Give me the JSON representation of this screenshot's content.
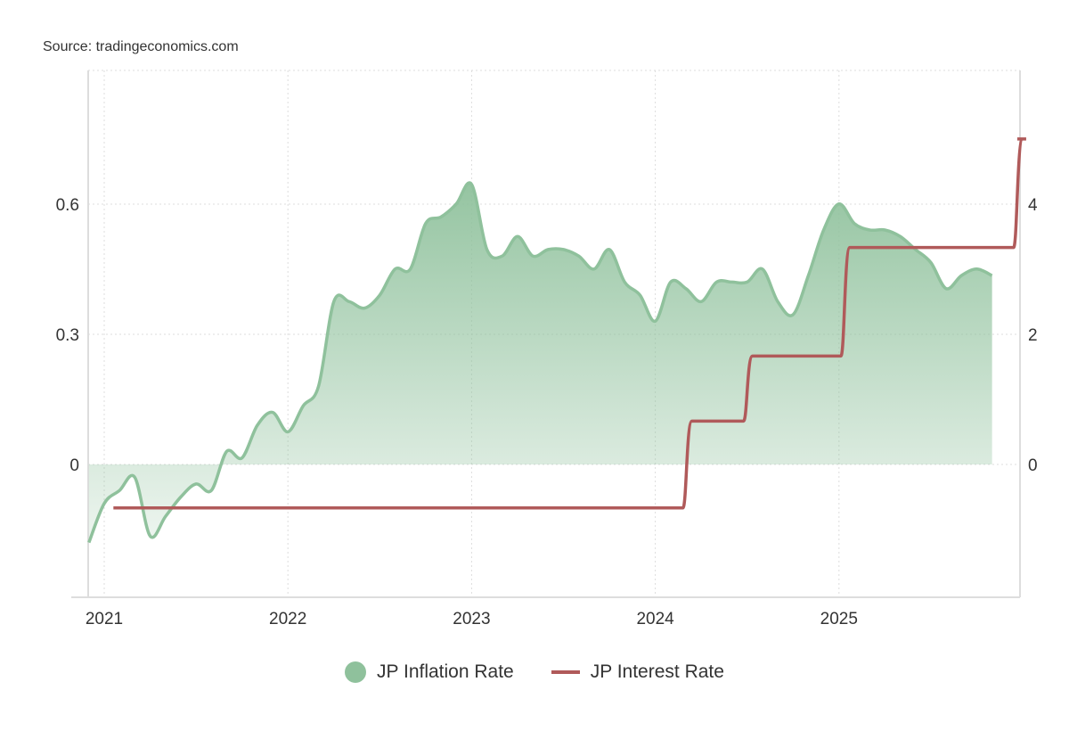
{
  "source": "Source: tradingeconomics.com",
  "colors": {
    "inflation": "#8fc19c",
    "interest": "#b05a5a"
  },
  "chart_data": {
    "type": "line",
    "title": "",
    "x_ticks": [
      "2021",
      "2022",
      "2023",
      "2024",
      "2025"
    ],
    "x_tick_values": [
      2021,
      2022,
      2023,
      2024,
      2025
    ],
    "left_axis": {
      "ticks": [
        "0",
        "0.3",
        "0.6"
      ],
      "tick_values": [
        0,
        0.3,
        0.6
      ],
      "range": [
        -0.306,
        0.908
      ],
      "series": "JP Interest Rate"
    },
    "right_axis": {
      "ticks": [
        "0",
        "2",
        "4"
      ],
      "tick_values": [
        0,
        2,
        4
      ],
      "range": [
        -2.04,
        6.05
      ],
      "series": "JP Inflation Rate"
    },
    "grid": true,
    "legend_position": "bottom",
    "series": [
      {
        "name": "JP Inflation Rate",
        "axis": "right",
        "style": "area",
        "start": "2020-12",
        "frequency": "monthly",
        "values": [
          -1.2,
          -0.6,
          -0.4,
          -0.2,
          -1.1,
          -0.8,
          -0.5,
          -0.3,
          -0.4,
          0.2,
          0.1,
          0.6,
          0.8,
          0.5,
          0.9,
          1.2,
          2.5,
          2.5,
          2.4,
          2.6,
          3.0,
          3.0,
          3.7,
          3.8,
          4.0,
          4.3,
          3.3,
          3.2,
          3.5,
          3.2,
          3.3,
          3.3,
          3.2,
          3.0,
          3.3,
          2.8,
          2.6,
          2.2,
          2.8,
          2.7,
          2.5,
          2.8,
          2.8,
          2.8,
          3.0,
          2.5,
          2.3,
          2.9,
          3.6,
          4.0,
          3.7,
          3.6,
          3.6,
          3.5,
          3.3,
          3.1,
          2.7,
          2.9,
          3.0,
          2.9
        ]
      },
      {
        "name": "JP Interest Rate",
        "axis": "left",
        "style": "step",
        "x": [
          2021.05,
          2024.17,
          2024.5,
          2025.03,
          2025.97,
          2025.99
        ],
        "values": [
          -0.1,
          0.1,
          0.25,
          0.5,
          0.75,
          0.75
        ]
      }
    ]
  }
}
